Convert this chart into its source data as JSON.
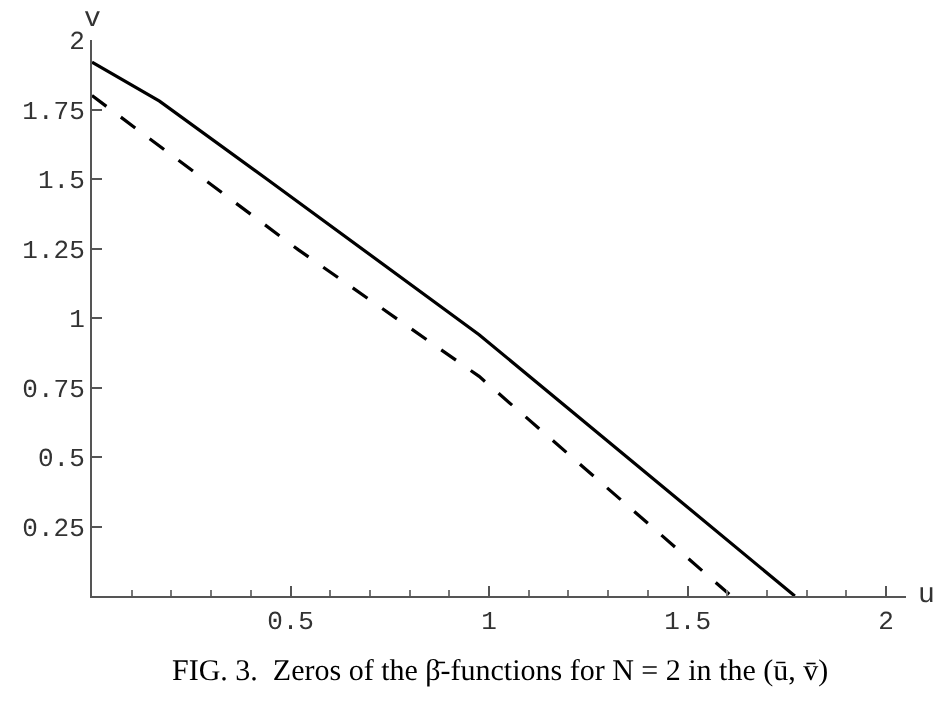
{
  "chart_data": {
    "type": "line",
    "xlabel": "u",
    "ylabel": "v",
    "annotations": [
      "FIG. 3.  Zeros of the β̄-functions for N = 2 in the (ū, v̄)"
    ],
    "series": [
      {
        "color": "#000000",
        "line_style": "solid",
        "x": [
          0,
          0.17,
          0.44,
          0.975,
          1.77
        ],
        "values": [
          1.92,
          1.78,
          1.5,
          0.94,
          0
        ]
      },
      {
        "color": "#000000",
        "line_style": "dashed",
        "x": [
          0,
          0.52,
          0.975,
          1.61
        ],
        "values": [
          1.8,
          1.245,
          0.79,
          0
        ]
      }
    ],
    "xlim": [
      0,
      2.05
    ],
    "ylim": [
      0,
      2
    ],
    "xticks": [
      0.5,
      1,
      1.5,
      2
    ],
    "yticks": [
      0.25,
      0.5,
      0.75,
      1,
      1.25,
      1.5,
      1.75,
      2
    ],
    "marker": "none"
  }
}
